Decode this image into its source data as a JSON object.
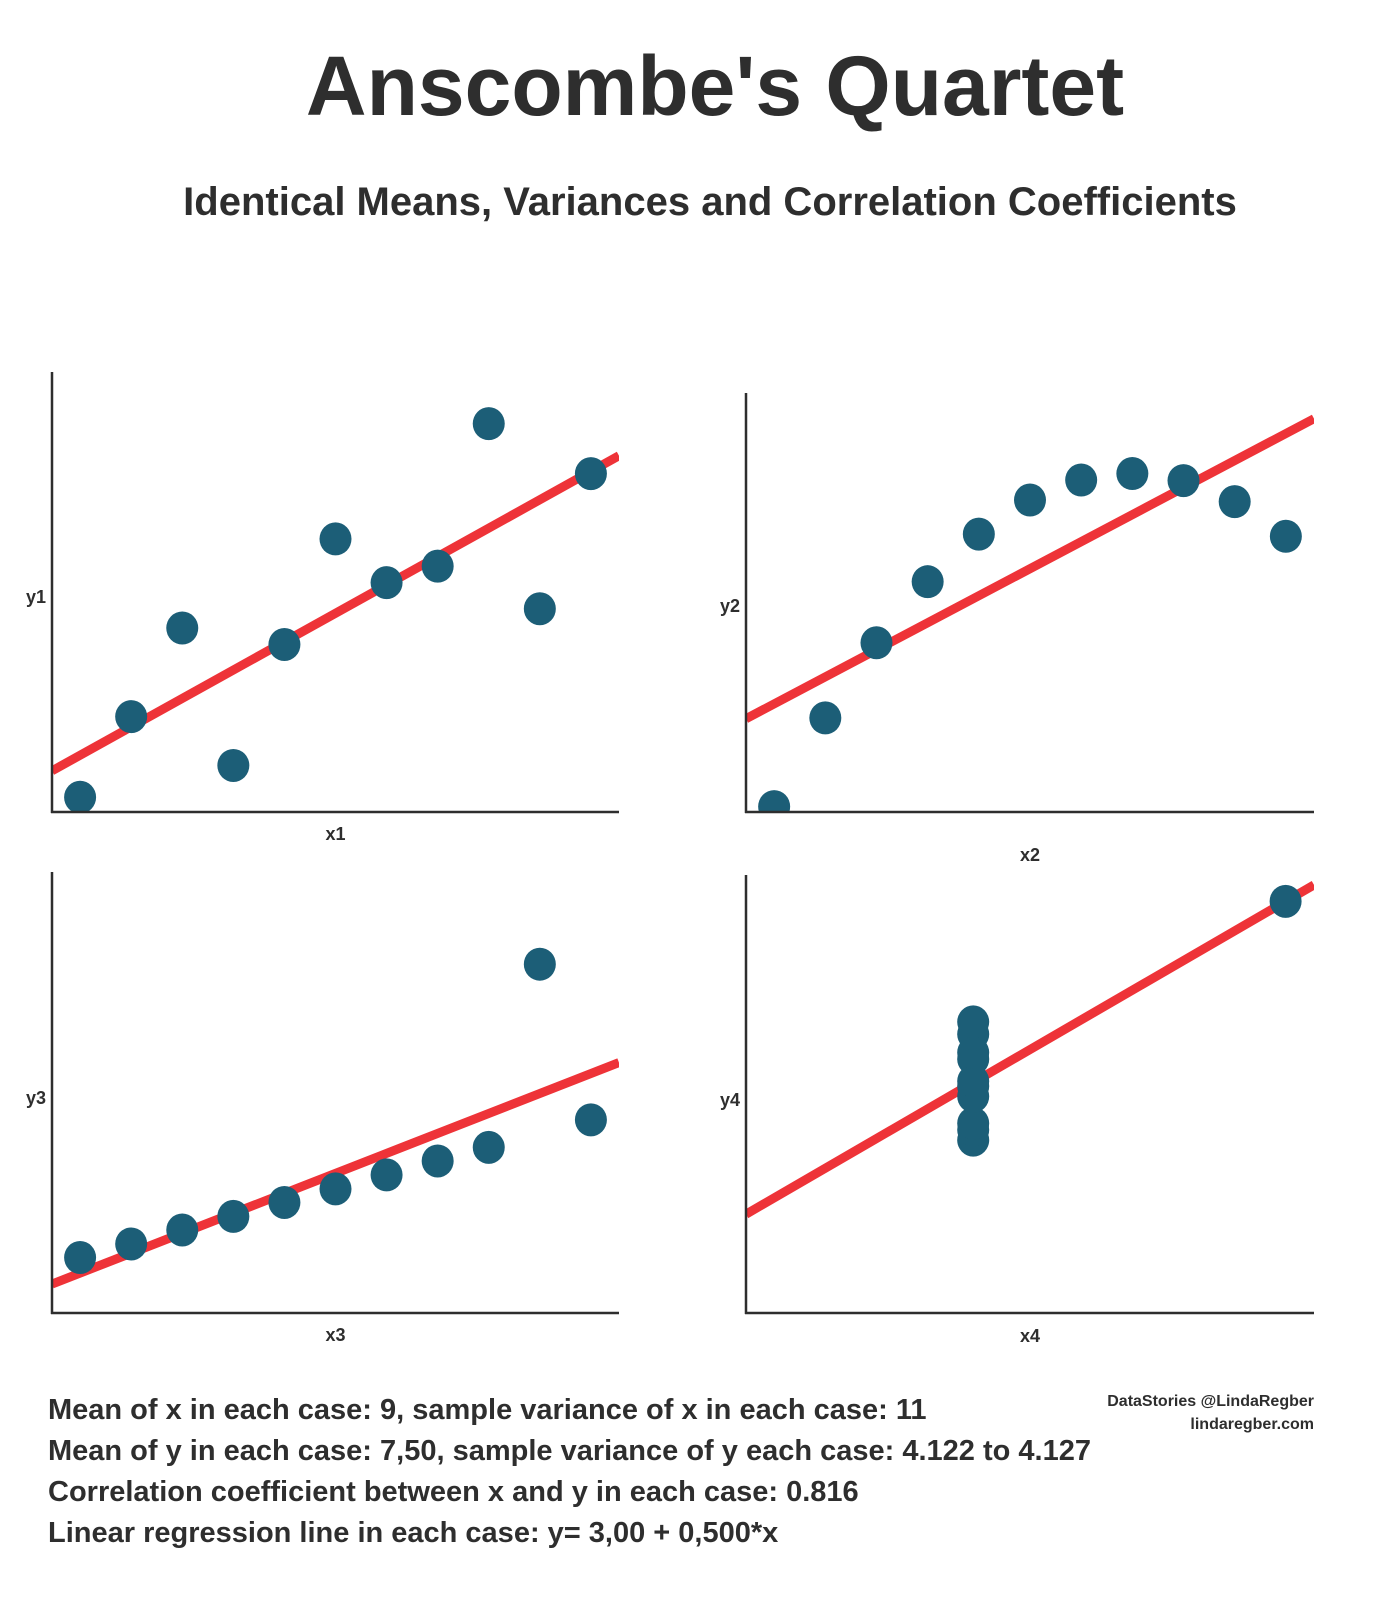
{
  "title": "Anscombe's Quartet",
  "subtitle": "Identical Means, Variances and Correlation Coefficients",
  "colors": {
    "point": "#1c5e77",
    "regression": "#ee3338",
    "axis": "#2e2e2e",
    "text": "#2e2e2e"
  },
  "chart_data": [
    {
      "type": "scatter",
      "title": "",
      "xlabel": "x1",
      "ylabel": "y1",
      "xlim": [
        3.45,
        14.55
      ],
      "ylim": [
        4.0,
        11.75
      ],
      "x": [
        4,
        5,
        6,
        7,
        8,
        9,
        10,
        11,
        12,
        13,
        14
      ],
      "y": [
        4.26,
        5.68,
        7.24,
        4.82,
        6.95,
        8.81,
        8.04,
        8.33,
        10.84,
        7.58,
        9.96
      ],
      "regression": {
        "intercept": 3.0,
        "slope": 0.5
      },
      "grid": false
    },
    {
      "type": "scatter",
      "title": "",
      "xlabel": "x2",
      "ylabel": "y2",
      "xlim": [
        3.45,
        14.55
      ],
      "ylim": [
        3.0,
        10.75
      ],
      "x": [
        4,
        5,
        6,
        7,
        8,
        9,
        10,
        11,
        12,
        13,
        14
      ],
      "y": [
        3.1,
        4.74,
        6.13,
        7.26,
        8.14,
        8.77,
        9.14,
        9.26,
        9.13,
        8.74,
        8.1
      ],
      "regression": {
        "intercept": 3.0,
        "slope": 0.5
      },
      "grid": false
    },
    {
      "type": "scatter",
      "title": "",
      "xlabel": "x3",
      "ylabel": "y3",
      "xlim": [
        3.45,
        14.55
      ],
      "ylim": [
        4.0,
        15.05
      ],
      "x": [
        4,
        5,
        6,
        7,
        8,
        9,
        10,
        11,
        12,
        13,
        14
      ],
      "y": [
        5.39,
        5.73,
        6.08,
        6.42,
        6.77,
        7.11,
        7.46,
        7.81,
        8.15,
        12.74,
        8.84
      ],
      "regression": {
        "intercept": 3.0,
        "slope": 0.5
      },
      "grid": false
    },
    {
      "type": "scatter",
      "title": "",
      "xlabel": "x4",
      "ylabel": "y4",
      "xlim": [
        0,
        20
      ],
      "ylim": [
        0,
        13.3
      ],
      "x": [
        8,
        8,
        8,
        8,
        8,
        8,
        8,
        8,
        8,
        8,
        19
      ],
      "y": [
        5.25,
        5.56,
        5.76,
        6.58,
        6.89,
        7.04,
        7.71,
        7.91,
        8.47,
        8.84,
        12.5
      ],
      "regression": {
        "intercept": 3.0,
        "slope": 0.5
      },
      "grid": false
    }
  ],
  "stats": [
    "Mean of x in each case: 9, sample variance of x in each case: 11",
    "Mean of y in each case: 7,50, sample variance of y each case: 4.122 to 4.127",
    "Correlation coefficient between x and y in each case: 0.816",
    "Linear regression line in each case: y= 3,00 + 0,500*x"
  ],
  "credit": {
    "author": "DataStories @LindaRegber",
    "site": "lindaregber.com"
  }
}
